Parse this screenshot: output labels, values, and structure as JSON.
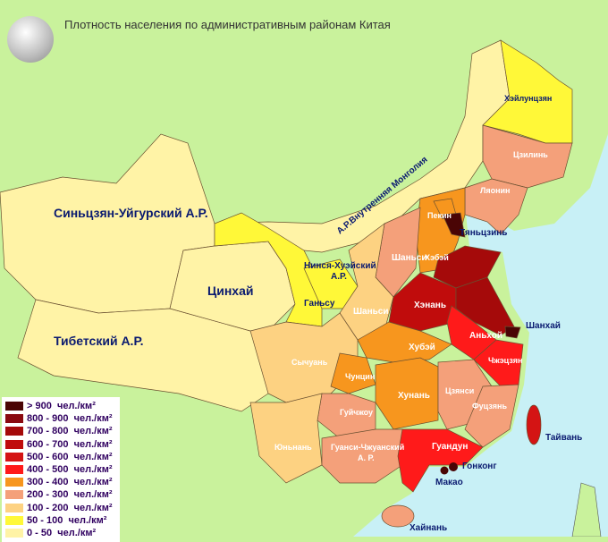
{
  "title": "Плотность населения по административным районам Китая",
  "logo": "Wikipedia",
  "legend": [
    {
      "range": "> 900",
      "unit": "чел./км²",
      "color": "#4a0505"
    },
    {
      "range": "800 - 900",
      "unit": "чел./км²",
      "color": "#8a0a10"
    },
    {
      "range": "700 - 800",
      "unit": "чел./км²",
      "color": "#a50a0a"
    },
    {
      "range": "600 - 700",
      "unit": "чел./км²",
      "color": "#c00c0c"
    },
    {
      "range": "500 - 600",
      "unit": "чел./км²",
      "color": "#d41414"
    },
    {
      "range": "400 - 500",
      "unit": "чел./км²",
      "color": "#ff1a1a"
    },
    {
      "range": "300 - 400",
      "unit": "чел./км²",
      "color": "#f7961e"
    },
    {
      "range": "200 - 300",
      "unit": "чел./км²",
      "color": "#f4a07a"
    },
    {
      "range": "100 - 200",
      "unit": "чел./км²",
      "color": "#fdd282"
    },
    {
      "range": "50 - 100",
      "unit": "чел./км²",
      "color": "#fff838"
    },
    {
      "range": "0 - 50",
      "unit": "чел./км²",
      "color": "#fff3a6"
    }
  ],
  "colors": {
    "land": "#c9f29c",
    "sea": "#c8f0f6",
    "label_dark": "#0a1a70",
    "label_light": "#ffffff"
  },
  "regions": [
    {
      "id": "xinjiang",
      "name": "Синьцзян-Уйгурский А.Р.",
      "cls": 10
    },
    {
      "id": "tibet",
      "name": "Тибетский А.Р.",
      "cls": 10
    },
    {
      "id": "qinghai",
      "name": "Цинхай",
      "cls": 10
    },
    {
      "id": "innermongolia",
      "name": "А.Р.Внутренняя Монголия",
      "cls": 10
    },
    {
      "id": "gansu",
      "name": "Ганьсу",
      "cls": 9
    },
    {
      "id": "ningxia",
      "name": "Нинся-Хуэйский А.Р.",
      "cls": 9
    },
    {
      "id": "heilongjiang",
      "name": "Хэйлунцзян",
      "cls": 9
    },
    {
      "id": "jilin",
      "name": "Цзилинь",
      "cls": 7
    },
    {
      "id": "liaoning",
      "name": "Ляонин",
      "cls": 7
    },
    {
      "id": "hebei",
      "name": "Хэбэй",
      "cls": 6
    },
    {
      "id": "beijing",
      "name": "Пекин",
      "cls": 6
    },
    {
      "id": "tianjin",
      "name": "Тяньцзинь",
      "cls": 0
    },
    {
      "id": "shanxi",
      "name": "Шаньси",
      "cls": 7
    },
    {
      "id": "shaanxi",
      "name": "Шаньси",
      "cls": 8
    },
    {
      "id": "shandong",
      "name": "",
      "cls": 2
    },
    {
      "id": "henan",
      "name": "Хэнань",
      "cls": 3
    },
    {
      "id": "jiangsu",
      "name": "",
      "cls": 2
    },
    {
      "id": "anhui",
      "name": "Аньхой",
      "cls": 5
    },
    {
      "id": "shanghai",
      "name": "Шанхай",
      "cls": 0
    },
    {
      "id": "zhejiang",
      "name": "Чжэцзян",
      "cls": 5
    },
    {
      "id": "hubei",
      "name": "Хубэй",
      "cls": 6
    },
    {
      "id": "sichuan",
      "name": "Сычуань",
      "cls": 8
    },
    {
      "id": "chongqing",
      "name": "Чунцин",
      "cls": 6
    },
    {
      "id": "hunan",
      "name": "Хунань",
      "cls": 6
    },
    {
      "id": "jiangxi",
      "name": "Цзянси",
      "cls": 7
    },
    {
      "id": "fujian",
      "name": "Фуцзянь",
      "cls": 7
    },
    {
      "id": "guizhou",
      "name": "Гуйчжоу",
      "cls": 7
    },
    {
      "id": "yunnan",
      "name": "Юньнань",
      "cls": 8
    },
    {
      "id": "guangxi",
      "name": "Гуанси-Чжуанский А. Р.",
      "cls": 7
    },
    {
      "id": "guangdong",
      "name": "Гуандун",
      "cls": 5
    },
    {
      "id": "hainan",
      "name": "Хайнань",
      "cls": 7
    },
    {
      "id": "taiwan",
      "name": "Тайвань",
      "cls": 4
    },
    {
      "id": "hongkong",
      "name": "Гонконг",
      "cls": 0
    },
    {
      "id": "macau",
      "name": "Макао",
      "cls": 0
    }
  ]
}
